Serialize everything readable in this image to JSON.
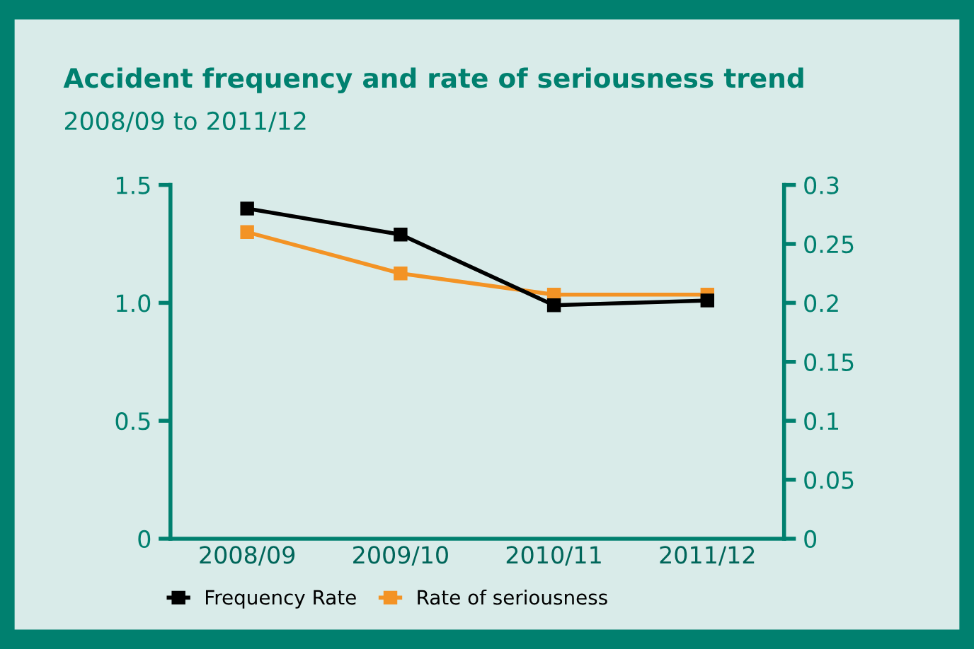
{
  "chart_data": {
    "type": "line",
    "title": "Accident frequency and rate of seriousness trend",
    "subtitle": "2008/09 to 2011/12",
    "categories": [
      "2008/09",
      "2009/10",
      "2010/11",
      "2011/12"
    ],
    "series": [
      {
        "name": "Frequency Rate",
        "color": "#000000",
        "values": [
          1.4,
          1.29,
          0.99,
          1.01
        ]
      },
      {
        "name": "Rate of seriousness",
        "color": "#f39325",
        "values": [
          0.26,
          0.225,
          0.207,
          0.207
        ],
        "axis": "y2"
      }
    ],
    "ylim": [
      0,
      1.5
    ],
    "yticks": [
      0,
      0.5,
      {
        "value": 1.0,
        "label": "1.0"
      },
      1.5
    ],
    "y2lim": [
      0,
      0.3
    ],
    "y2ticks": [
      0,
      0.05,
      0.1,
      0.15,
      0.2,
      0.25,
      0.3
    ],
    "marker": "square",
    "legend": "bottom",
    "grid": false
  }
}
